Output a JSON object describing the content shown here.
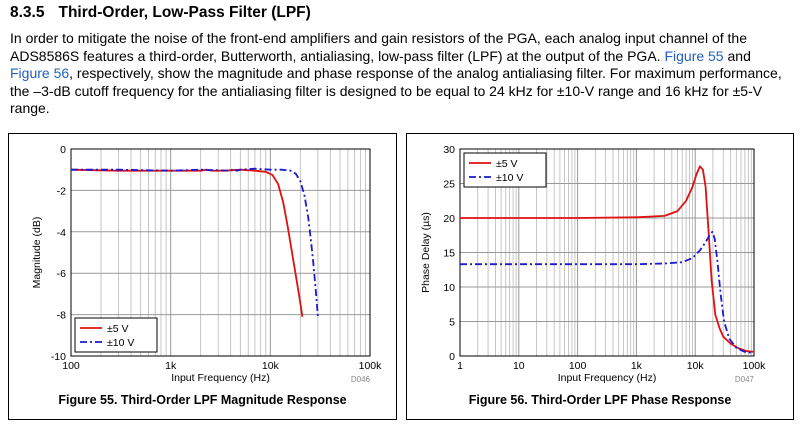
{
  "section": {
    "number": "8.3.5",
    "title": "Third-Order, Low-Pass Filter (LPF)"
  },
  "paragraph": {
    "part1": "In order to mitigate the noise of the front-end amplifiers and gain resistors of the PGA, each analog input channel of the ADS8586S features a third-order, Butterworth, antialiasing, low-pass filter (LPF) at the output of the PGA. ",
    "link1": "Figure 55",
    "part2": " and ",
    "link2": "Figure 56",
    "part3": ", respectively, show the magnitude and phase response of the analog antialiasing filter. For maximum performance, the –3-dB cutoff frequency for the antialiasing filter is designed to be equal to 24 kHz for ±10-V range and 16 kHz for ±5-V range."
  },
  "colors": {
    "series_5v": "#e01010",
    "series_10v": "#1a1ad0",
    "link": "#2160c4"
  },
  "chart_data": [
    {
      "type": "line",
      "caption": "Figure 55. Third-Order LPF Magnitude Response",
      "code": "D046",
      "xlabel": "Input Frequency (Hz)",
      "ylabel": "Magnitude (dB)",
      "x_scale": "log",
      "xlim": [
        100,
        100000
      ],
      "ylim": [
        -10,
        0
      ],
      "xticks": [
        100,
        1000,
        10000,
        100000
      ],
      "xtick_labels": [
        "100",
        "1k",
        "10k",
        "100k"
      ],
      "yticks": [
        0,
        -2,
        -4,
        -6,
        -8,
        -10
      ],
      "ytick_labels": [
        "0",
        "-2",
        "-4",
        "-6",
        "-8",
        "-10"
      ],
      "grid": true,
      "legend_position": "bottom-left",
      "series": [
        {
          "name": "±5 V",
          "style": "solid",
          "x": [
            100,
            300,
            1000,
            2000,
            2300,
            2600,
            3500,
            5000,
            7000,
            9000,
            10500,
            12000,
            13500,
            15000,
            16500,
            18000,
            19500,
            21000
          ],
          "y": [
            -1.0,
            -1.05,
            -1.05,
            -1.05,
            -1.0,
            -1.05,
            -1.05,
            -1.0,
            -1.05,
            -1.1,
            -1.25,
            -1.7,
            -2.6,
            -3.8,
            -5.0,
            -6.1,
            -7.1,
            -8.1
          ]
        },
        {
          "name": "±10 V",
          "style": "dashdot",
          "x": [
            100,
            300,
            1000,
            2000,
            4000,
            4300,
            4600,
            5000,
            7000,
            10000,
            13000,
            16000,
            18000,
            20000,
            22000,
            24000,
            25500,
            27000,
            28500,
            30000
          ],
          "y": [
            -1.0,
            -1.0,
            -1.05,
            -1.0,
            -1.05,
            -0.95,
            -1.05,
            -1.0,
            -0.95,
            -1.0,
            -1.0,
            -1.05,
            -1.2,
            -1.55,
            -2.25,
            -3.3,
            -4.4,
            -5.5,
            -6.8,
            -8.1
          ]
        }
      ]
    },
    {
      "type": "line",
      "caption": "Figure 56. Third-Order LPF Phase Response",
      "code": "D047",
      "xlabel": "Input Frequency (Hz)",
      "ylabel": "Phase Delay (µs)",
      "x_scale": "log",
      "xlim": [
        1,
        100000
      ],
      "ylim": [
        0,
        30
      ],
      "xticks": [
        1,
        10,
        100,
        1000,
        10000,
        100000
      ],
      "xtick_labels": [
        "1",
        "10",
        "100",
        "1k",
        "10k",
        "100k"
      ],
      "yticks": [
        30,
        25,
        20,
        15,
        10,
        5,
        0
      ],
      "ytick_labels": [
        "30",
        "25",
        "20",
        "15",
        "10",
        "5",
        "0"
      ],
      "grid": true,
      "legend_position": "top-left",
      "series": [
        {
          "name": "±5 V",
          "style": "solid",
          "x": [
            1,
            10,
            100,
            1000,
            3000,
            5000,
            7000,
            9000,
            10500,
            12000,
            13500,
            15000,
            17000,
            19000,
            22000,
            26000,
            30000,
            40000,
            55000,
            75000,
            100000
          ],
          "y": [
            20,
            20,
            20,
            20.1,
            20.3,
            21.0,
            22.5,
            24.5,
            26.3,
            27.5,
            27.0,
            24.5,
            17.5,
            11.0,
            6.0,
            4.0,
            2.8,
            1.8,
            1.1,
            0.7,
            0.6
          ]
        },
        {
          "name": "±10 V",
          "style": "dashdot",
          "x": [
            1,
            10,
            100,
            1000,
            3000,
            6000,
            9000,
            12000,
            15000,
            17500,
            19500,
            21500,
            24000,
            27000,
            31000,
            38000,
            50000,
            70000,
            100000
          ],
          "y": [
            13.3,
            13.3,
            13.3,
            13.3,
            13.4,
            13.6,
            14.2,
            15.3,
            16.5,
            17.5,
            18.0,
            17.0,
            13.5,
            9.0,
            5.0,
            2.5,
            1.2,
            0.6,
            0.4
          ]
        }
      ]
    }
  ]
}
